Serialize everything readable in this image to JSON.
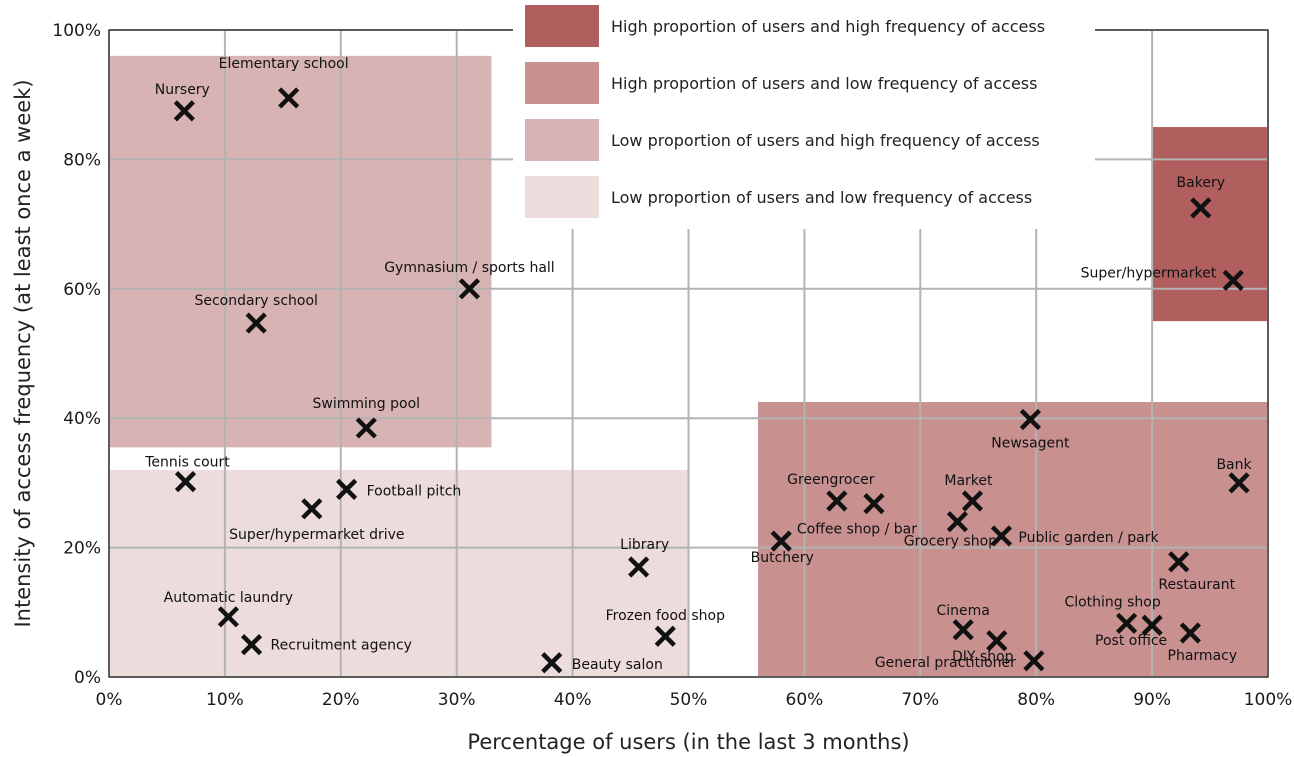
{
  "chart_data": {
    "type": "scatter",
    "xlabel": "Percentage of users (in the last 3 months)",
    "ylabel": "Intensity of access frequency (at least once a week)",
    "xlim": [
      0,
      100
    ],
    "ylim": [
      0,
      100
    ],
    "x_ticks": [
      "0%",
      "10%",
      "20%",
      "30%",
      "40%",
      "50%",
      "60%",
      "70%",
      "80%",
      "90%",
      "100%"
    ],
    "y_ticks": [
      "0%",
      "20%",
      "40%",
      "60%",
      "80%",
      "100%"
    ],
    "grid": true,
    "legend_position": "top-right",
    "marker": "x",
    "colors": {
      "high_high": "#b05e5e",
      "high_low": "#c89190",
      "low_high": "#d8b3b3",
      "low_low": "#ecdcdc",
      "grid": "#b3b3b3",
      "marker": "#111111"
    },
    "legend": [
      {
        "key": "high_high",
        "label": "High proportion of users and high frequency of access"
      },
      {
        "key": "high_low",
        "label": "High proportion of users and low frequency of access"
      },
      {
        "key": "low_high",
        "label": "Low proportion of users and high frequency of access"
      },
      {
        "key": "low_low",
        "label": "Low proportion of users and low frequency of access"
      }
    ],
    "regions": [
      {
        "key": "low_high",
        "x": [
          0,
          33
        ],
        "y": [
          35.5,
          96
        ]
      },
      {
        "key": "low_low",
        "x": [
          0,
          50
        ],
        "y": [
          0,
          32
        ]
      },
      {
        "key": "high_low",
        "x": [
          56,
          100
        ],
        "y": [
          0,
          42.5
        ]
      },
      {
        "key": "high_high",
        "x": [
          90,
          100
        ],
        "y": [
          55,
          85
        ]
      }
    ],
    "points": [
      {
        "label": "Nursery",
        "x": 6.5,
        "y": 87.5
      },
      {
        "label": "Elementary school",
        "x": 15.5,
        "y": 89.5
      },
      {
        "label": "Secondary school",
        "x": 12.7,
        "y": 54.7
      },
      {
        "label": "Gymnasium / sports hall",
        "x": 31.1,
        "y": 60
      },
      {
        "label": "Swimming pool",
        "x": 22.2,
        "y": 38.5
      },
      {
        "label": "Tennis court",
        "x": 6.6,
        "y": 30.2
      },
      {
        "label": "Football pitch",
        "x": 20.5,
        "y": 29
      },
      {
        "label": "Super/hypermarket drive",
        "x": 17.5,
        "y": 26
      },
      {
        "label": "Automatic laundry",
        "x": 10.3,
        "y": 9.3
      },
      {
        "label": "Recruitment agency",
        "x": 12.3,
        "y": 5
      },
      {
        "label": "Library",
        "x": 45.7,
        "y": 17
      },
      {
        "label": "Frozen food shop",
        "x": 48,
        "y": 6.3
      },
      {
        "label": "Beauty salon",
        "x": 38.2,
        "y": 2.2
      },
      {
        "label": "Bakery",
        "x": 94.2,
        "y": 72.5
      },
      {
        "label": "Super/hypermarket",
        "x": 97,
        "y": 61.3
      },
      {
        "label": "Newsagent",
        "x": 79.5,
        "y": 39.8
      },
      {
        "label": "Bank",
        "x": 97.5,
        "y": 30
      },
      {
        "label": "Greengrocer",
        "x": 62.8,
        "y": 27.2
      },
      {
        "label": "Coffee shop / bar",
        "x": 66,
        "y": 26.8
      },
      {
        "label": "Market",
        "x": 74.5,
        "y": 27.2
      },
      {
        "label": "Grocery shop",
        "x": 73.2,
        "y": 24
      },
      {
        "label": "Public garden / park",
        "x": 77,
        "y": 21.8
      },
      {
        "label": "Butchery",
        "x": 58,
        "y": 21
      },
      {
        "label": "Restaurant",
        "x": 92.3,
        "y": 17.8
      },
      {
        "label": "Cinema",
        "x": 73.7,
        "y": 7.3
      },
      {
        "label": "DIY shop",
        "x": 76.6,
        "y": 5.6
      },
      {
        "label": "General practitioner",
        "x": 79.8,
        "y": 2.5
      },
      {
        "label": "Clothing shop",
        "x": 87.8,
        "y": 8.3
      },
      {
        "label": "Post office",
        "x": 90,
        "y": 8
      },
      {
        "label": "Pharmacy",
        "x": 93.3,
        "y": 6.8
      }
    ]
  }
}
